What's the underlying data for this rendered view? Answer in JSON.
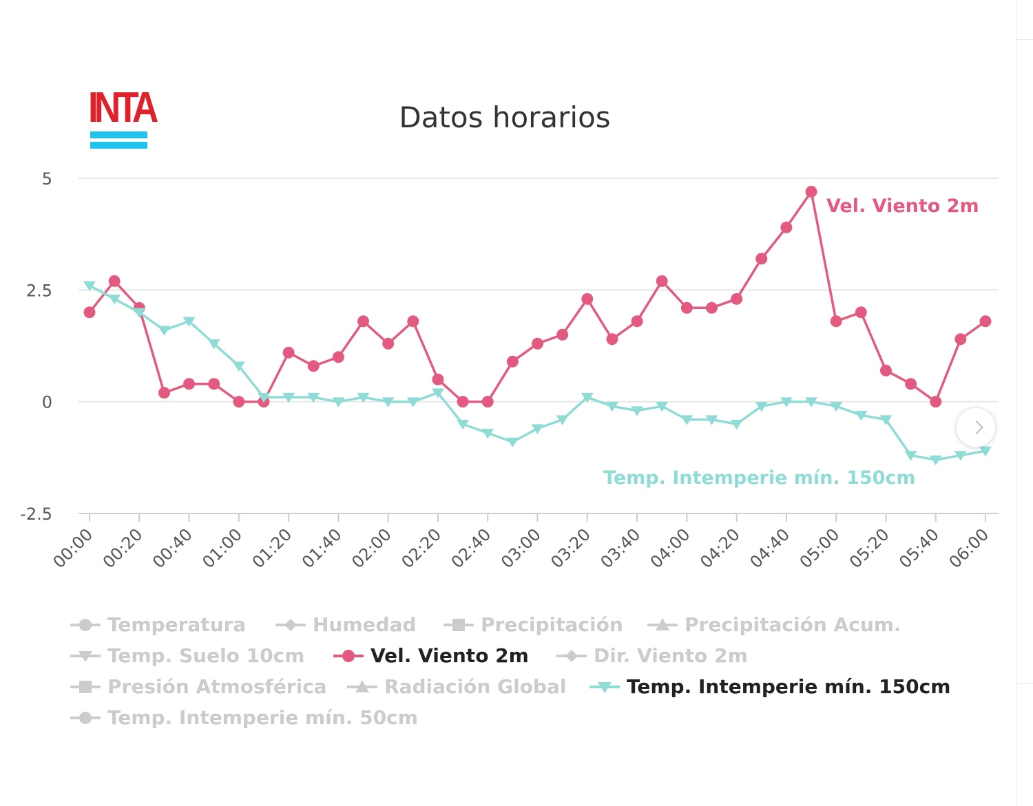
{
  "logo": {
    "text": "INTA"
  },
  "chart_data": {
    "type": "line",
    "title": "Datos horarios",
    "xlabel": "",
    "ylabel": "",
    "ylim": [
      -2.5,
      5
    ],
    "yticks": [
      "5",
      "2.5",
      "0",
      "-2.5"
    ],
    "ytick_values": [
      5,
      2.5,
      0,
      -2.5
    ],
    "x_tick_labels": [
      "00:00",
      "00:20",
      "00:40",
      "01:00",
      "01:20",
      "01:40",
      "02:00",
      "02:20",
      "02:40",
      "03:00",
      "03:20",
      "03:40",
      "04:00",
      "04:20",
      "04:40",
      "05:00",
      "05:20",
      "05:40",
      "06:00"
    ],
    "x_minutes_step": 10,
    "grid": "horizontal",
    "series": [
      {
        "name": "Vel. Viento 2m",
        "color": "#e25a80",
        "marker": "circle",
        "values": [
          2.0,
          2.7,
          2.1,
          0.2,
          0.4,
          0.4,
          0.0,
          0.0,
          1.1,
          0.8,
          1.0,
          1.8,
          1.3,
          1.8,
          0.5,
          0.0,
          0.0,
          0.9,
          1.3,
          1.5,
          2.3,
          1.4,
          1.8,
          2.7,
          2.1,
          2.1,
          2.3,
          3.2,
          3.9,
          4.7,
          1.8,
          2.0,
          0.7,
          0.4,
          0.0,
          1.4,
          1.8
        ]
      },
      {
        "name": "Temp. Intemperie mín. 150cm",
        "color": "#8fdcd7",
        "marker": "triangle-down",
        "values": [
          2.6,
          2.3,
          2.0,
          1.6,
          1.8,
          1.3,
          0.8,
          0.1,
          0.1,
          0.1,
          0.0,
          0.1,
          0.0,
          0.0,
          0.2,
          -0.5,
          -0.7,
          -0.9,
          -0.6,
          -0.4,
          0.1,
          -0.1,
          -0.2,
          -0.1,
          -0.4,
          -0.4,
          -0.5,
          -0.1,
          0.0,
          0.0,
          -0.1,
          -0.3,
          -0.4,
          -1.2,
          -1.3,
          -1.2,
          -1.1
        ]
      }
    ],
    "series_labels": [
      {
        "text": "Vel. Viento 2m",
        "color": "#e25a80"
      },
      {
        "text": "Temp. Intemperie mín. 150cm",
        "color": "#8fdcd7"
      }
    ],
    "legend": {
      "placement": "bottom",
      "rows": [
        [
          {
            "label": "Temperatura",
            "marker": "circle",
            "active": false
          },
          {
            "label": "Humedad",
            "marker": "diamond",
            "active": false
          },
          {
            "label": "Precipitación",
            "marker": "square",
            "active": false
          },
          {
            "label": "Precipitación Acum.",
            "marker": "triangle",
            "active": false
          }
        ],
        [
          {
            "label": "Temp. Suelo 10cm",
            "marker": "triangle-down",
            "active": false
          },
          {
            "label": "Vel. Viento 2m",
            "marker": "circle",
            "active": true,
            "color": "#e25a80"
          },
          {
            "label": "Dir. Viento 2m",
            "marker": "diamond",
            "active": false
          }
        ],
        [
          {
            "label": "Presión Atmosférica",
            "marker": "square",
            "active": false
          },
          {
            "label": "Radiación Global",
            "marker": "triangle",
            "active": false
          },
          {
            "label": "Temp. Intemperie mín. 150cm",
            "marker": "triangle-down",
            "active": true,
            "color": "#8fdcd7"
          }
        ],
        [
          {
            "label": "Temp. Intemperie mín. 50cm",
            "marker": "circle",
            "active": false
          }
        ]
      ],
      "inactive_color": "#cccccc"
    }
  }
}
